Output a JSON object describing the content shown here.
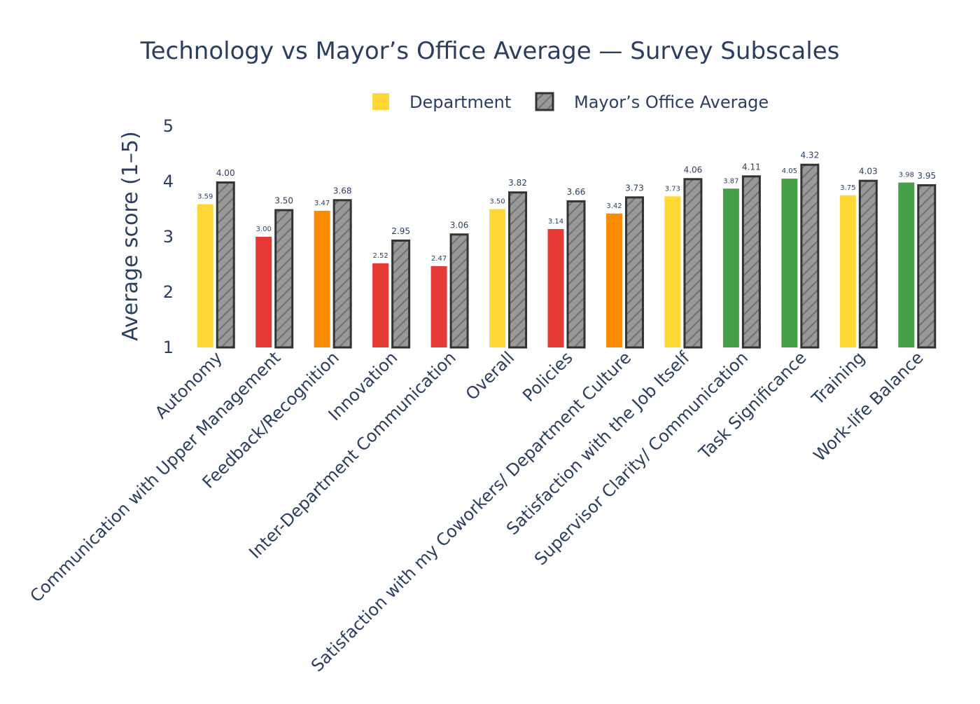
{
  "chart_data": {
    "type": "bar",
    "title": "Technology vs Mayor’s Office Average — Survey Subscales",
    "xlabel": "",
    "ylabel": "Average score (1–5)",
    "ylim": [
      1,
      5
    ],
    "yticks": [
      1,
      2,
      3,
      4,
      5
    ],
    "legend_position": "top-center",
    "categories": [
      "Autonomy",
      "Communication with Upper Management",
      "Feedback/Recognition",
      "Innovation",
      "Inter-Department Communication",
      "Overall",
      "Policies",
      "Satisfaction with my Coworkers/ Department Culture",
      "Satisfaction with the Job Itself",
      "Supervisor Clarity/ Communication",
      "Task Significance",
      "Training",
      "Work-life Balance"
    ],
    "series": [
      {
        "name": "Department",
        "values": [
          3.59,
          3.0,
          3.47,
          2.52,
          2.47,
          3.5,
          3.14,
          3.42,
          3.73,
          3.87,
          4.05,
          3.75,
          3.98
        ],
        "labels": [
          "3.59",
          "3.00",
          "3.47",
          "2.52",
          "2.47",
          "3.50",
          "3.14",
          "3.42",
          "3.73",
          "3.87",
          "4.05",
          "3.75",
          "3.98"
        ],
        "colors": [
          "#fdd835",
          "#e53935",
          "#fb8c00",
          "#e53935",
          "#e53935",
          "#fdd835",
          "#e53935",
          "#fb8c00",
          "#fdd835",
          "#43a047",
          "#43a047",
          "#fdd835",
          "#43a047"
        ]
      },
      {
        "name": "Mayor’s Office Average",
        "values": [
          4.0,
          3.5,
          3.68,
          2.95,
          3.06,
          3.82,
          3.66,
          3.73,
          4.06,
          4.11,
          4.32,
          4.03,
          3.95
        ],
        "labels": [
          "4.00",
          "3.50",
          "3.68",
          "2.95",
          "3.06",
          "3.82",
          "3.66",
          "3.73",
          "4.06",
          "4.11",
          "4.32",
          "4.03",
          "3.95"
        ],
        "color": "#999999",
        "outline": "#333333",
        "pattern": "diagonal-hatch"
      }
    ]
  },
  "colors": {
    "text": "#2a3f5f",
    "legend_department": "#fdd835",
    "mayors_fill": "#999999",
    "mayors_outline": "#333333"
  }
}
